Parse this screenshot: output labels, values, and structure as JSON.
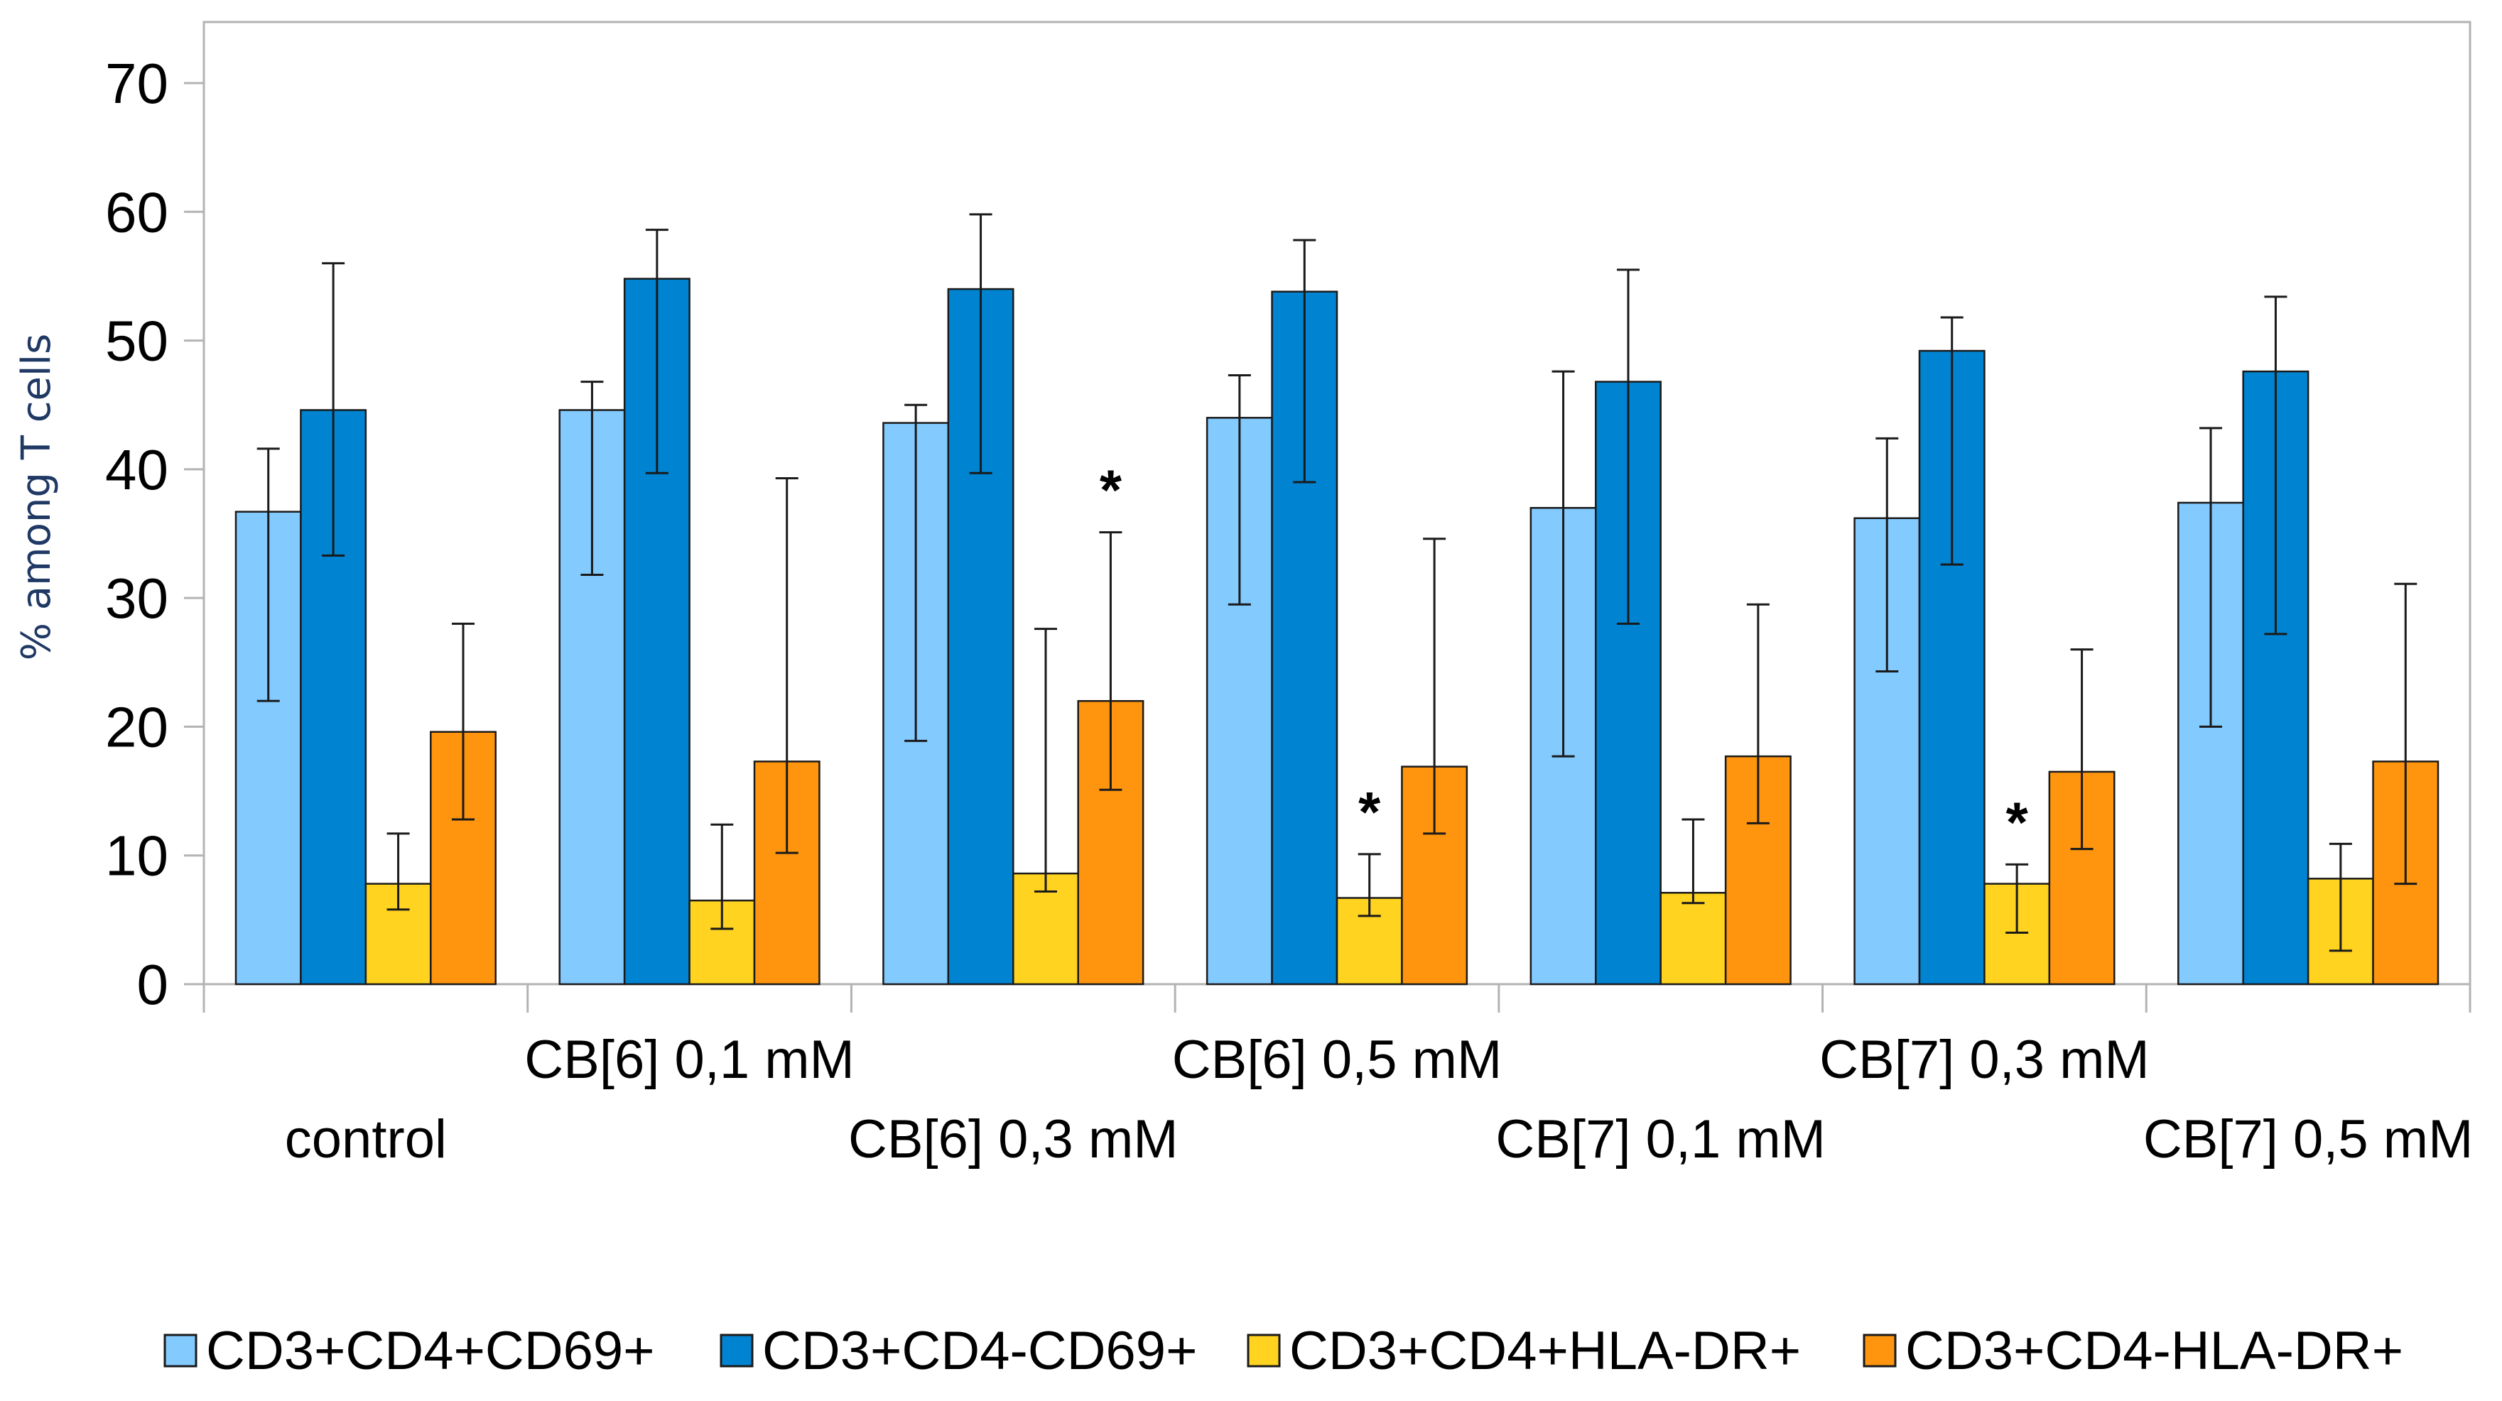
{
  "chart_data": {
    "type": "bar",
    "title": "",
    "xlabel": "",
    "ylabel": "% among T cells",
    "ylim": [
      0,
      70
    ],
    "yticks": [
      0,
      10,
      20,
      30,
      40,
      50,
      60,
      70
    ],
    "grid": false,
    "legend_position": "bottom",
    "categories": [
      "control",
      "CB[6] 0,1 mM",
      "CB[6] 0,3 mM",
      "CB[6] 0,5 mM",
      "CB[7] 0,1 mM",
      "CB[7] 0,3 mM",
      "CB[7] 0,5 mM"
    ],
    "series": [
      {
        "name": "CD3+CD4+CD69+",
        "color": "#83caff",
        "values": [
          36.7,
          44.6,
          43.6,
          44.0,
          37.0,
          36.2,
          37.4
        ],
        "err_low": [
          22.0,
          31.8,
          18.9,
          29.5,
          17.7,
          24.3,
          20.0
        ],
        "err_high": [
          41.6,
          46.8,
          45.0,
          47.3,
          47.6,
          42.4,
          43.2
        ],
        "significant": [
          false,
          false,
          false,
          false,
          false,
          false,
          false
        ]
      },
      {
        "name": "CD3+CD4-CD69+",
        "color": "#0084d1",
        "values": [
          44.6,
          54.8,
          54.0,
          53.8,
          46.8,
          49.2,
          47.6
        ],
        "err_low": [
          33.3,
          39.7,
          39.7,
          39.0,
          28.0,
          32.6,
          27.2
        ],
        "err_high": [
          56.0,
          58.6,
          59.8,
          57.8,
          55.5,
          51.8,
          53.4
        ],
        "significant": [
          false,
          false,
          false,
          false,
          false,
          false,
          false
        ]
      },
      {
        "name": "CD3+CD4+HLA-DR+",
        "color": "#ffd320",
        "values": [
          7.8,
          6.5,
          8.6,
          6.7,
          7.1,
          7.8,
          8.2
        ],
        "err_low": [
          5.8,
          4.3,
          7.2,
          5.3,
          6.3,
          4.0,
          2.6
        ],
        "err_high": [
          11.7,
          12.4,
          27.6,
          10.1,
          12.8,
          9.3,
          10.9
        ],
        "significant": [
          false,
          false,
          false,
          true,
          false,
          true,
          false
        ]
      },
      {
        "name": "CD3+CD4-HLA-DR+",
        "color": "#ff950e",
        "values": [
          19.6,
          17.3,
          22.0,
          16.9,
          17.7,
          16.5,
          17.3
        ],
        "err_low": [
          12.8,
          10.2,
          15.1,
          11.7,
          12.5,
          10.5,
          7.8
        ],
        "err_high": [
          28.0,
          39.3,
          35.1,
          34.6,
          29.5,
          26.0,
          31.1
        ],
        "significant": [
          false,
          false,
          true,
          false,
          false,
          false,
          false
        ]
      }
    ],
    "significance_marker": "*"
  }
}
